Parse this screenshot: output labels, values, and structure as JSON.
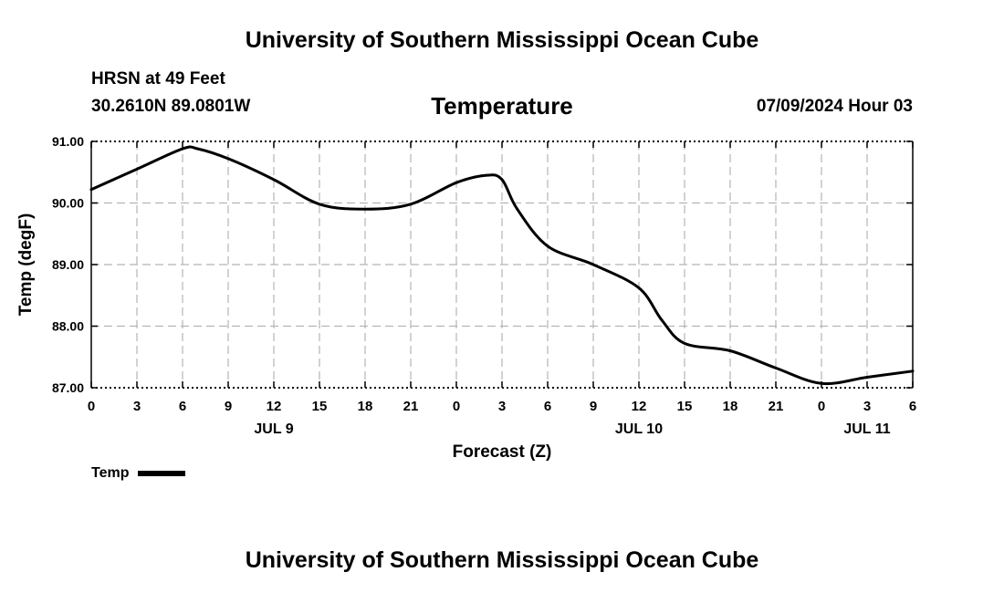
{
  "header": {
    "title_top": "University of Southern Mississippi Ocean Cube",
    "station": "HRSN at 49 Feet",
    "coords": "30.2610N  89.0801W",
    "chart_title": "Temperature",
    "datetime": "07/09/2024 Hour 03"
  },
  "footer": {
    "title_bottom": "University of Southern Mississippi Ocean Cube"
  },
  "legend": {
    "label": "Temp"
  },
  "chart_data": {
    "type": "line",
    "title": "Temperature",
    "xlabel": "Forecast (Z)",
    "ylabel": "Temp (degF)",
    "xlim": [
      0,
      54
    ],
    "ylim": [
      87.0,
      91.0
    ],
    "x_ticks": [
      0,
      3,
      6,
      9,
      12,
      15,
      18,
      21,
      24,
      27,
      30,
      33,
      36,
      39,
      42,
      45,
      48,
      51,
      54
    ],
    "x_tick_labels": [
      "0",
      "3",
      "6",
      "9",
      "12",
      "15",
      "18",
      "21",
      "0",
      "3",
      "6",
      "9",
      "12",
      "15",
      "18",
      "21",
      "0",
      "3",
      "6"
    ],
    "y_ticks": [
      87.0,
      88.0,
      89.0,
      90.0,
      91.0
    ],
    "y_tick_labels": [
      "87.00",
      "88.00",
      "89.00",
      "90.00",
      "91.00"
    ],
    "day_labels": [
      {
        "x": 12,
        "label": "JUL 9"
      },
      {
        "x": 36,
        "label": "JUL 10"
      },
      {
        "x": 51,
        "label": "JUL 11"
      }
    ],
    "grid": true,
    "series": [
      {
        "name": "Temp",
        "color": "#000000",
        "x": [
          0,
          3,
          6,
          7,
          9,
          12,
          15,
          18,
          21,
          24,
          26,
          27,
          28,
          30,
          33,
          36,
          37.5,
          39,
          42,
          45,
          48,
          51,
          54
        ],
        "values": [
          90.22,
          90.55,
          90.88,
          90.88,
          90.72,
          90.38,
          89.98,
          89.9,
          89.98,
          90.33,
          90.45,
          90.38,
          89.9,
          89.3,
          89.0,
          88.62,
          88.1,
          87.72,
          87.6,
          87.32,
          87.07,
          87.17,
          87.27
        ]
      }
    ]
  }
}
